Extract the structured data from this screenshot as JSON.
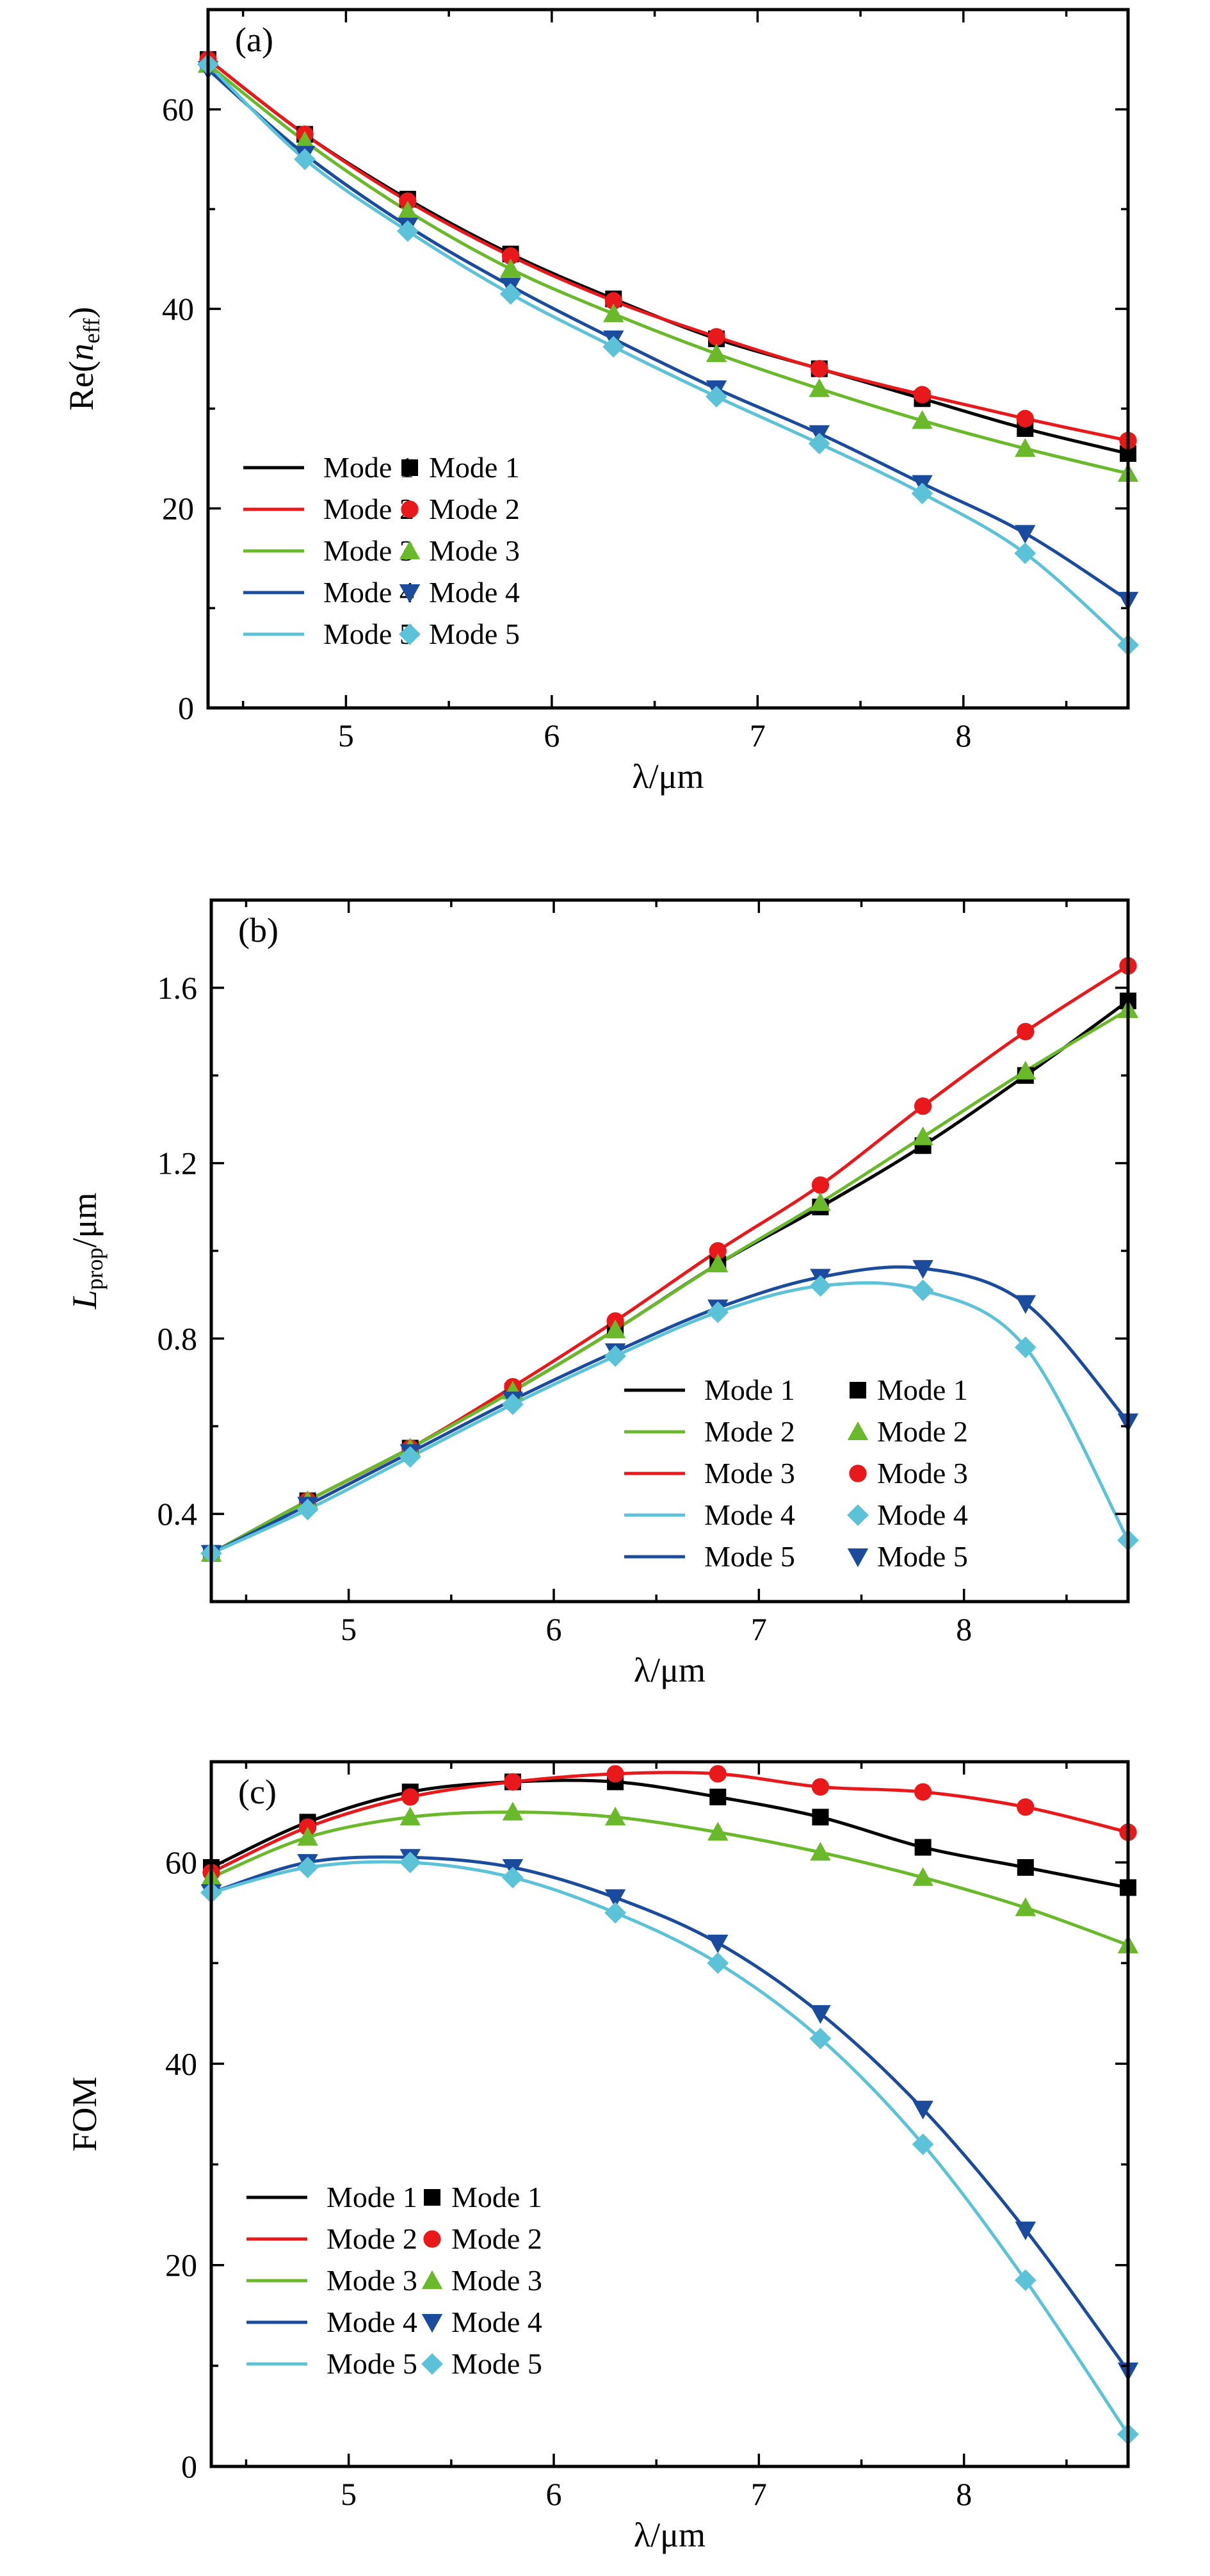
{
  "chart_data": [
    {
      "type": "line",
      "panel_label": "(a)",
      "xlabel": "λ/μm",
      "ylabel": "Re(n_eff)",
      "ylabel_main": "Re(",
      "ylabel_var": "n",
      "ylabel_sub": "eff",
      "ylabel_close": ")",
      "xlim": [
        4.33,
        8.8
      ],
      "ylim": [
        0,
        70
      ],
      "xticks": [
        5,
        6,
        7,
        8
      ],
      "yticks": [
        0,
        20,
        40,
        60
      ],
      "x": [
        4.33,
        4.8,
        5.3,
        5.8,
        6.3,
        6.8,
        7.3,
        7.8,
        8.3,
        8.8
      ],
      "legend_placement": "lower-left",
      "legend_line_labels": [
        "Mode 1",
        "Mode 2",
        "Mode 3",
        "Mode 4",
        "Mode 5"
      ],
      "legend_marker_labels": [
        "Mode 1",
        "Mode 2",
        "Mode 3",
        "Mode 4",
        "Mode 5"
      ],
      "series": [
        {
          "name": "Mode 1",
          "color": "#000000",
          "marker": "square",
          "values": [
            65.0,
            57.5,
            51.0,
            45.5,
            41.0,
            37.0,
            34.0,
            31.0,
            28.0,
            25.5
          ]
        },
        {
          "name": "Mode 2",
          "color": "#e8181b",
          "marker": "circle",
          "values": [
            65.0,
            57.5,
            50.8,
            45.3,
            40.8,
            37.2,
            34.0,
            31.4,
            29.0,
            26.8
          ]
        },
        {
          "name": "Mode 3",
          "color": "#6ab92a",
          "marker": "triangle-up",
          "values": [
            64.5,
            56.8,
            49.8,
            44.0,
            39.5,
            35.5,
            32.0,
            28.8,
            26.0,
            23.5
          ]
        },
        {
          "name": "Mode 4",
          "color": "#1a4b9c",
          "marker": "triangle-down",
          "values": [
            64.0,
            55.5,
            48.3,
            42.3,
            37.0,
            32.0,
            27.5,
            22.5,
            17.5,
            10.8
          ]
        },
        {
          "name": "Mode 5",
          "color": "#5bc2d8",
          "marker": "diamond",
          "values": [
            64.5,
            55.0,
            47.8,
            41.5,
            36.2,
            31.2,
            26.5,
            21.5,
            15.5,
            6.3
          ]
        }
      ]
    },
    {
      "type": "line",
      "panel_label": "(b)",
      "xlabel": "λ/μm",
      "ylabel": "L_prop/μm",
      "ylabel_var": "L",
      "ylabel_sub": "prop",
      "ylabel_unit": "/μm",
      "xlim": [
        4.33,
        8.8
      ],
      "ylim": [
        0.2,
        1.8
      ],
      "xticks": [
        5,
        6,
        7,
        8
      ],
      "yticks": [
        0.4,
        0.8,
        1.2,
        1.6
      ],
      "ytick_labels": [
        "0.4",
        "0.8",
        "1.2",
        "1.6"
      ],
      "x": [
        4.33,
        4.8,
        5.3,
        5.8,
        6.3,
        6.8,
        7.3,
        7.8,
        8.3,
        8.8
      ],
      "legend_placement": "lower-right",
      "legend_line_labels": [
        "Mode 1",
        "Mode 2",
        "Mode 3",
        "Mode 4",
        "Mode 5"
      ],
      "legend_marker_labels": [
        "Mode 1",
        "Mode 2",
        "Mode 3",
        "Mode 4",
        "Mode 5"
      ],
      "legend_line_colors": [
        "#000000",
        "#6ab92a",
        "#e8181b",
        "#5bc2d8",
        "#1a4b9c"
      ],
      "legend_markers": [
        {
          "marker": "square",
          "color": "#000000"
        },
        {
          "marker": "triangle-up",
          "color": "#6ab92a"
        },
        {
          "marker": "circle",
          "color": "#e8181b"
        },
        {
          "marker": "diamond",
          "color": "#5bc2d8"
        },
        {
          "marker": "triangle-down",
          "color": "#1a4b9c"
        }
      ],
      "series": [
        {
          "color": "#000000",
          "marker": "square",
          "values": [
            0.31,
            0.43,
            0.55,
            0.68,
            0.82,
            0.97,
            1.1,
            1.24,
            1.4,
            1.57
          ]
        },
        {
          "color": "#e8181b",
          "marker": "circle",
          "values": [
            0.31,
            0.43,
            0.55,
            0.69,
            0.84,
            1.0,
            1.15,
            1.33,
            1.5,
            1.65
          ]
        },
        {
          "color": "#6ab92a",
          "marker": "triangle-up",
          "values": [
            0.31,
            0.43,
            0.55,
            0.68,
            0.82,
            0.97,
            1.11,
            1.26,
            1.41,
            1.55
          ]
        },
        {
          "color": "#1a4b9c",
          "marker": "triangle-down",
          "values": [
            0.31,
            0.42,
            0.54,
            0.66,
            0.77,
            0.87,
            0.94,
            0.96,
            0.88,
            0.61
          ]
        },
        {
          "color": "#5bc2d8",
          "marker": "diamond",
          "values": [
            0.31,
            0.41,
            0.53,
            0.65,
            0.76,
            0.86,
            0.92,
            0.91,
            0.78,
            0.34
          ]
        }
      ]
    },
    {
      "type": "line",
      "panel_label": "(c)",
      "xlabel": "λ/μm",
      "ylabel": "FOM",
      "xlim": [
        4.33,
        8.8
      ],
      "ylim": [
        0,
        70
      ],
      "xticks": [
        5,
        6,
        7,
        8
      ],
      "yticks": [
        0,
        20,
        40,
        60
      ],
      "x": [
        4.33,
        4.8,
        5.3,
        5.8,
        6.3,
        6.8,
        7.3,
        7.8,
        8.3,
        8.8
      ],
      "legend_placement": "lower-left",
      "legend_line_labels": [
        "Mode 1",
        "Mode 2",
        "Mode 3",
        "Mode 4",
        "Mode 5"
      ],
      "legend_marker_labels": [
        "Mode 1",
        "Mode 2",
        "Mode 3",
        "Mode 4",
        "Mode 5"
      ],
      "series": [
        {
          "name": "Mode 1",
          "color": "#000000",
          "marker": "square",
          "values": [
            59.5,
            64.0,
            67.0,
            68.0,
            68.0,
            66.5,
            64.5,
            61.5,
            59.5,
            57.5
          ]
        },
        {
          "name": "Mode 2",
          "color": "#e8181b",
          "marker": "circle",
          "values": [
            59.0,
            63.5,
            66.5,
            68.0,
            68.8,
            68.8,
            67.5,
            67.0,
            65.5,
            63.0
          ]
        },
        {
          "name": "Mode 3",
          "color": "#6ab92a",
          "marker": "triangle-up",
          "values": [
            58.5,
            62.5,
            64.5,
            65.0,
            64.5,
            63.0,
            61.0,
            58.5,
            55.5,
            51.8
          ]
        },
        {
          "name": "Mode 4",
          "color": "#1a4b9c",
          "marker": "triangle-down",
          "values": [
            57.0,
            60.0,
            60.5,
            59.5,
            56.5,
            52.0,
            45.0,
            35.5,
            23.5,
            9.5
          ]
        },
        {
          "name": "Mode 5",
          "color": "#5bc2d8",
          "marker": "diamond",
          "values": [
            57.0,
            59.5,
            60.0,
            58.5,
            55.0,
            50.0,
            42.5,
            32.0,
            18.5,
            3.2
          ]
        }
      ]
    }
  ]
}
